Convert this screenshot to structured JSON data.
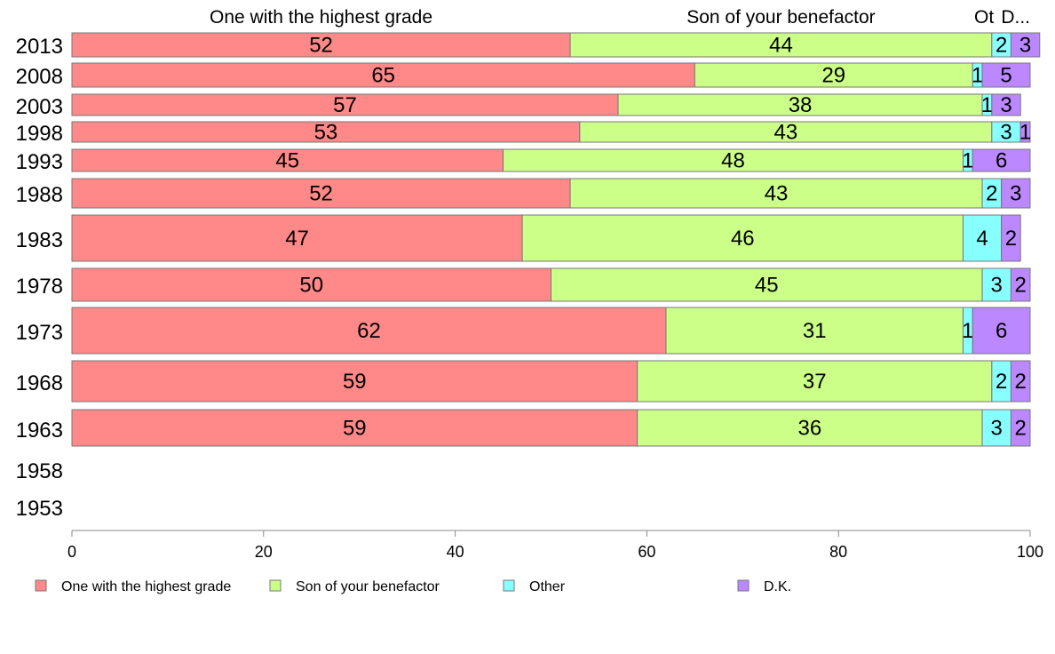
{
  "chart_data": {
    "type": "bar",
    "orientation": "horizontal",
    "stacked": true,
    "categories": [
      "2013",
      "2008",
      "2003",
      "1998",
      "1993",
      "1988",
      "1983",
      "1978",
      "1973",
      "1968",
      "1963",
      "1958",
      "1953"
    ],
    "series": [
      {
        "name": "One with the highest grade",
        "color": "#ff8888",
        "values": [
          52,
          65,
          57,
          53,
          45,
          52,
          47,
          50,
          62,
          59,
          59,
          null,
          null
        ]
      },
      {
        "name": "Son of your benefactor",
        "color": "#ccff88",
        "values": [
          44,
          29,
          38,
          43,
          48,
          43,
          46,
          45,
          31,
          37,
          36,
          null,
          null
        ]
      },
      {
        "name": "Other",
        "color": "#88ffff",
        "values": [
          2,
          1,
          1,
          3,
          1,
          2,
          4,
          3,
          1,
          2,
          3,
          null,
          null
        ]
      },
      {
        "name": "D.K.",
        "color": "#bb88ff",
        "values": [
          3,
          5,
          3,
          1,
          6,
          3,
          2,
          2,
          6,
          2,
          2,
          null,
          null
        ]
      }
    ],
    "column_headers": [
      "One with the highest grade",
      "Son of your benefactor",
      "Ot",
      "D..."
    ],
    "xlim": [
      0,
      100
    ],
    "xticks": [
      "0",
      "20",
      "40",
      "60",
      "80",
      "100"
    ],
    "grid": false,
    "legend": "bottom"
  }
}
